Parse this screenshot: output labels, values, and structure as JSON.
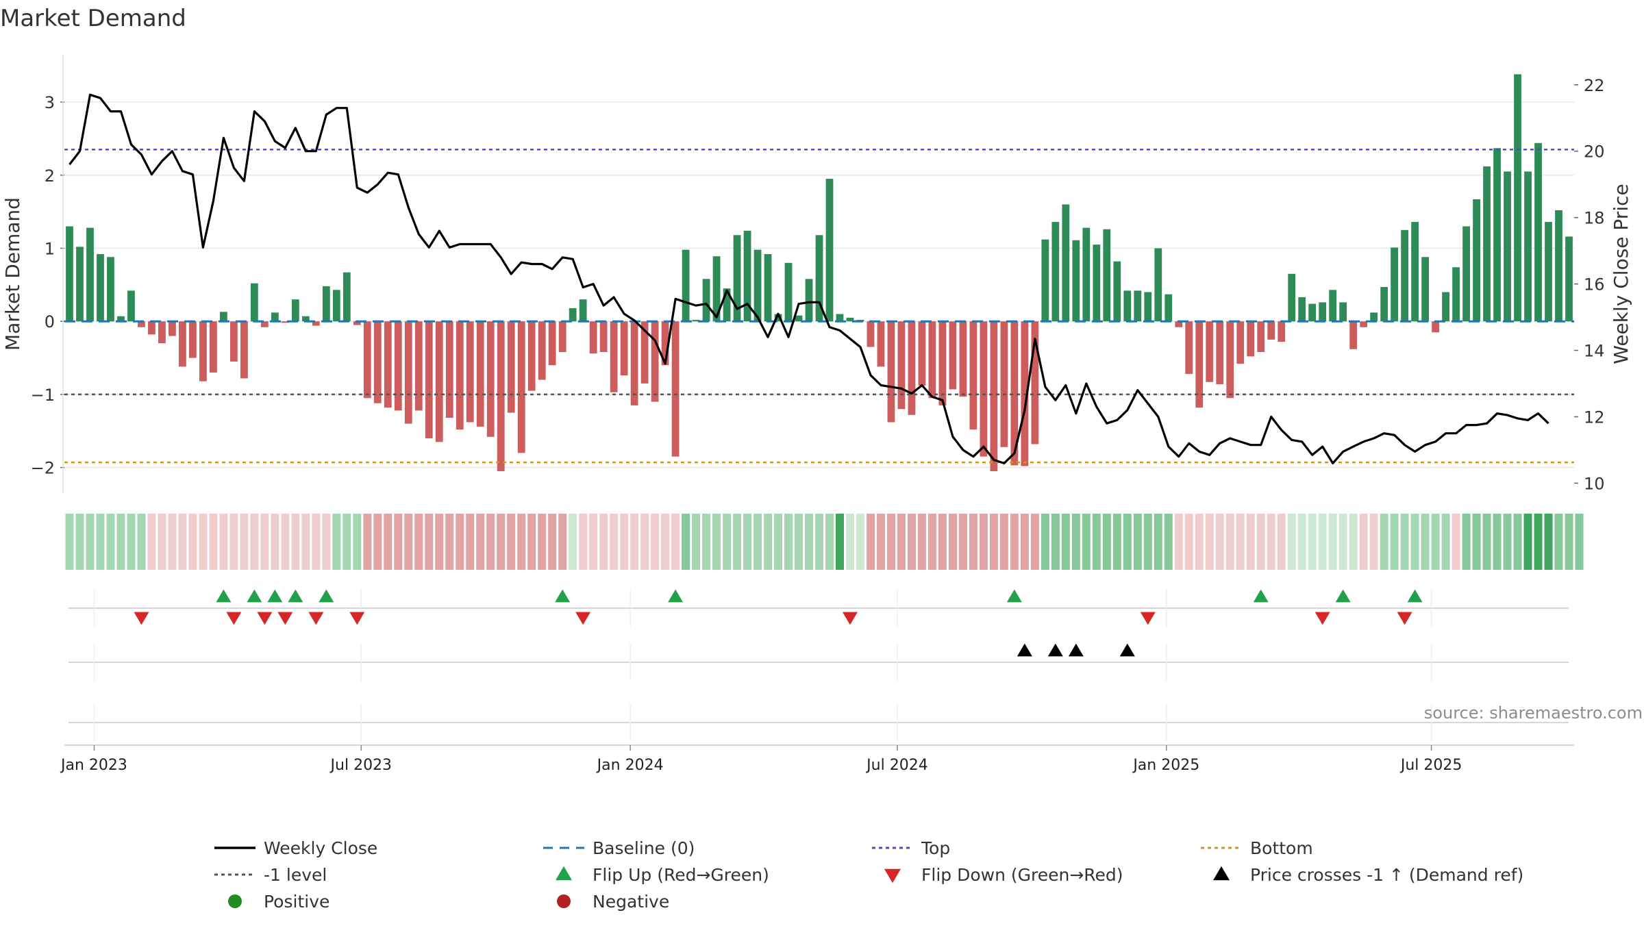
{
  "title": "Market Demand",
  "source": "source: sharemaestro.com",
  "colors": {
    "positive": "#2e8b57",
    "negative": "#cd5c5c",
    "close": "#000000",
    "baseline": "#1f77b4",
    "top": "#4c4cc8",
    "level": "#555555",
    "bottom": "#d4941c",
    "flip_up": "#22a04a",
    "flip_down": "#d62728",
    "cross": "#000000",
    "grid": "#e6e6e6"
  },
  "chart_data": {
    "type": "bar",
    "title": "Market Demand",
    "xlabel": "",
    "ylabel": "Market Demand",
    "y2label": "Weekly Close Price",
    "ylim": [
      -2.35,
      3.6
    ],
    "y2lim": [
      9.7,
      22.8
    ],
    "y_ticks": [
      -2,
      -1,
      0,
      1,
      2,
      3
    ],
    "y_tick_labels": [
      "−2",
      "−1",
      "0",
      "1",
      "2",
      "3"
    ],
    "y2_ticks": [
      10,
      12,
      14,
      16,
      18,
      20,
      22
    ],
    "x_ticks": [
      {
        "label": "Jan 2023",
        "week": 2.9
      },
      {
        "label": "Jul 2023",
        "week": 28.9
      },
      {
        "label": "Jan 2024",
        "week": 55.1
      },
      {
        "label": "Jul 2024",
        "week": 81.1
      },
      {
        "label": "Jan 2025",
        "week": 107.3
      },
      {
        "label": "Jul 2025",
        "week": 133.1
      }
    ],
    "reference_lines": {
      "baseline": 0,
      "top": 2.35,
      "level": -1,
      "bottom": -1.93
    },
    "demand": [
      1.3,
      1.02,
      1.28,
      0.92,
      0.88,
      0.07,
      0.42,
      -0.08,
      -0.18,
      -0.3,
      -0.2,
      -0.62,
      -0.5,
      -0.82,
      -0.7,
      0.13,
      -0.55,
      -0.78,
      0.52,
      -0.08,
      0.12,
      -0.02,
      0.3,
      0.07,
      -0.06,
      0.48,
      0.43,
      0.67,
      -0.05,
      -1.05,
      -1.12,
      -1.18,
      -1.22,
      -1.4,
      -1.22,
      -1.6,
      -1.65,
      -1.32,
      -1.48,
      -1.38,
      -1.44,
      -1.58,
      -2.05,
      -1.25,
      -1.8,
      -0.95,
      -0.8,
      -0.6,
      -0.42,
      0.18,
      0.3,
      -0.44,
      -0.42,
      -0.97,
      -0.74,
      -1.15,
      -0.85,
      -1.1,
      -0.6,
      -1.85,
      0.98,
      0.02,
      0.58,
      0.89,
      0.45,
      1.18,
      1.24,
      0.98,
      0.92,
      0.1,
      0.8,
      0.08,
      0.58,
      1.18,
      1.95,
      0.1,
      0.05,
      0.02,
      -0.35,
      -0.62,
      -1.38,
      -1.2,
      -1.28,
      -0.88,
      -1.05,
      -1.15,
      -0.93,
      -1.03,
      -1.48,
      -1.85,
      -2.05,
      -1.72,
      -1.97,
      -1.98,
      -1.68,
      1.12,
      1.36,
      1.6,
      1.11,
      1.28,
      1.05,
      1.26,
      0.82,
      0.42,
      0.42,
      0.4,
      1.0,
      0.37,
      -0.08,
      -0.72,
      -1.18,
      -0.83,
      -0.86,
      -1.05,
      -0.58,
      -0.48,
      -0.42,
      -0.25,
      -0.28,
      0.65,
      0.33,
      0.24,
      0.26,
      0.43,
      0.26,
      -0.38,
      -0.08,
      0.12,
      0.47,
      1.01,
      1.25,
      1.36,
      0.88,
      -0.15,
      0.4,
      0.74,
      1.3,
      1.67,
      2.12,
      2.37,
      2.05,
      3.38,
      2.05,
      2.44,
      1.36,
      1.52,
      1.16
    ],
    "close": [
      19.6,
      20.0,
      21.7,
      21.6,
      21.2,
      21.2,
      20.2,
      19.9,
      19.3,
      19.7,
      20.0,
      19.4,
      19.3,
      17.1,
      18.5,
      20.4,
      19.5,
      19.1,
      21.2,
      20.9,
      20.3,
      20.1,
      20.7,
      20.0,
      20.0,
      21.1,
      21.3,
      21.3,
      18.9,
      18.75,
      19.0,
      19.35,
      19.3,
      18.3,
      17.5,
      17.1,
      17.6,
      17.1,
      17.2,
      17.2,
      17.2,
      17.2,
      16.8,
      16.3,
      16.65,
      16.6,
      16.6,
      16.45,
      16.8,
      16.75,
      15.9,
      16.0,
      15.35,
      15.6,
      15.1,
      14.9,
      14.6,
      14.3,
      13.6,
      15.55,
      15.45,
      15.35,
      15.4,
      15.0,
      15.8,
      15.25,
      15.4,
      15.0,
      14.4,
      15.1,
      14.4,
      15.4,
      15.45,
      15.45,
      14.7,
      14.6,
      14.35,
      14.1,
      13.25,
      12.95,
      12.9,
      12.85,
      12.7,
      12.95,
      12.6,
      12.5,
      11.4,
      11.0,
      10.8,
      11.1,
      10.7,
      10.6,
      10.9,
      12.2,
      14.35,
      12.9,
      12.5,
      12.95,
      12.1,
      13.0,
      12.3,
      11.8,
      11.9,
      12.2,
      12.8,
      12.4,
      12.0,
      11.1,
      10.8,
      11.2,
      10.95,
      10.85,
      11.2,
      11.35,
      11.25,
      11.15,
      11.15,
      12.0,
      11.6,
      11.3,
      11.25,
      10.85,
      11.1,
      10.6,
      10.95,
      11.1,
      11.25,
      11.35,
      11.5,
      11.45,
      11.15,
      10.95,
      11.15,
      11.25,
      11.5,
      11.5,
      11.75,
      11.75,
      11.8,
      12.1,
      12.05,
      11.95,
      11.9,
      12.1,
      11.8
    ],
    "heat_strips": [
      {
        "start": 0,
        "count": 8,
        "shade": "g2"
      },
      {
        "start": 8,
        "count": 18,
        "shade": "r1"
      },
      {
        "start": 26,
        "count": 3,
        "shade": "g2"
      },
      {
        "start": 29,
        "count": 20,
        "shade": "r2"
      },
      {
        "start": 49,
        "count": 1,
        "shade": "g1"
      },
      {
        "start": 50,
        "count": 10,
        "shade": "r1"
      },
      {
        "start": 60,
        "count": 1,
        "shade": "g3"
      },
      {
        "start": 61,
        "count": 14,
        "shade": "g2"
      },
      {
        "start": 75,
        "count": 1,
        "shade": "g4"
      },
      {
        "start": 76,
        "count": 2,
        "shade": "g1"
      },
      {
        "start": 78,
        "count": 17,
        "shade": "r2"
      },
      {
        "start": 95,
        "count": 13,
        "shade": "g3"
      },
      {
        "start": 108,
        "count": 11,
        "shade": "r1"
      },
      {
        "start": 119,
        "count": 7,
        "shade": "g1"
      },
      {
        "start": 126,
        "count": 2,
        "shade": "r1"
      },
      {
        "start": 128,
        "count": 7,
        "shade": "g2"
      },
      {
        "start": 135,
        "count": 1,
        "shade": "r1"
      },
      {
        "start": 136,
        "count": 6,
        "shade": "g3"
      },
      {
        "start": 142,
        "count": 3,
        "shade": "g4"
      },
      {
        "start": 145,
        "count": 3,
        "shade": "g3"
      }
    ],
    "flip_up_weeks": [
      15,
      18,
      20,
      22,
      25,
      48,
      59,
      92,
      116,
      124,
      131
    ],
    "flip_down_weeks": [
      7,
      16,
      19,
      21,
      24,
      28,
      50,
      76,
      105,
      122,
      130
    ],
    "price_cross_weeks": [
      93,
      96,
      98,
      103
    ],
    "legend": [
      {
        "label": "Weekly Close",
        "kind": "solid"
      },
      {
        "label": "Baseline (0)",
        "kind": "dash"
      },
      {
        "label": "Top",
        "kind": "dotted-top"
      },
      {
        "label": "Bottom",
        "kind": "dotted-bottom"
      },
      {
        "label": "-1 level",
        "kind": "dotted-level"
      },
      {
        "label": "Flip Up (Red→Green)",
        "kind": "tri-up"
      },
      {
        "label": "Flip Down (Green→Red)",
        "kind": "tri-down"
      },
      {
        "label": "Price crosses -1 ↑ (Demand ref)",
        "kind": "tri-cross"
      },
      {
        "label": "Positive",
        "kind": "dot-pos"
      },
      {
        "label": "Negative",
        "kind": "dot-neg"
      }
    ],
    "legend_placement": "bottom"
  }
}
